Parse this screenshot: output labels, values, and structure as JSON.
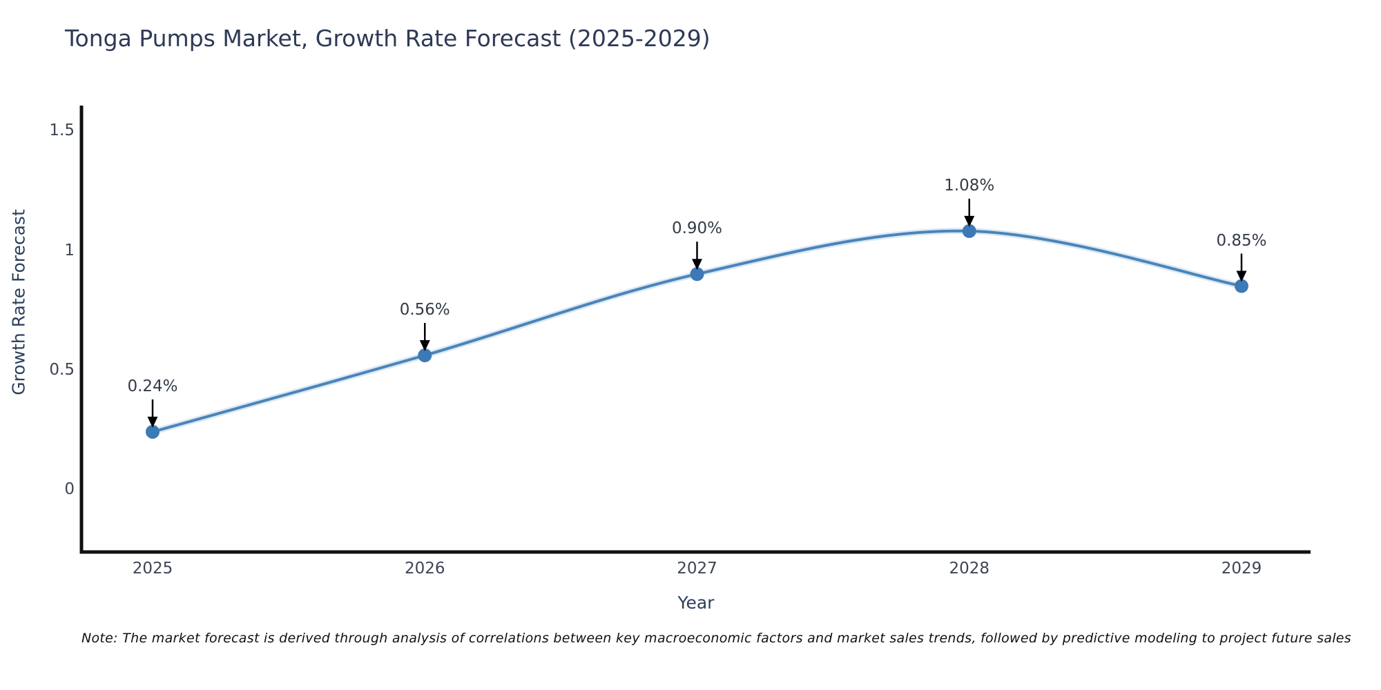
{
  "title": "Tonga Pumps Market, Growth Rate Forecast (2025-2029)",
  "chart_data": {
    "type": "line",
    "title": "Tonga Pumps Market, Growth Rate Forecast (2025-2029)",
    "x": [
      2025,
      2026,
      2027,
      2028,
      2029
    ],
    "series": [
      {
        "name": "Growth Rate Forecast",
        "values": [
          0.24,
          0.56,
          0.9,
          1.08,
          0.85
        ]
      }
    ],
    "point_labels": [
      "0.24%",
      "0.56%",
      "0.90%",
      "1.08%",
      "0.85%"
    ],
    "xlabel": "Year",
    "ylabel": "Growth Rate Forecast",
    "xtick_labels": [
      "2025",
      "2026",
      "2027",
      "2028",
      "2029"
    ],
    "ytick_values": [
      0,
      0.5,
      1,
      1.5
    ],
    "ytick_labels": [
      "0",
      "0.5",
      "1",
      "1.5"
    ],
    "ylim": [
      -0.27,
      1.6
    ],
    "line_shape": "spline",
    "grid": false,
    "legend_position": "none",
    "colors": {
      "line": "#4a84ba",
      "line_halo": "#aecbe5",
      "marker": "#3c7ab5",
      "annotation_arrow": "#000000",
      "axis": "#111111"
    }
  },
  "note": "Note: The market forecast is derived through analysis of correlations between key macroeconomic factors and market sales trends, followed by predictive modeling to project future sales"
}
